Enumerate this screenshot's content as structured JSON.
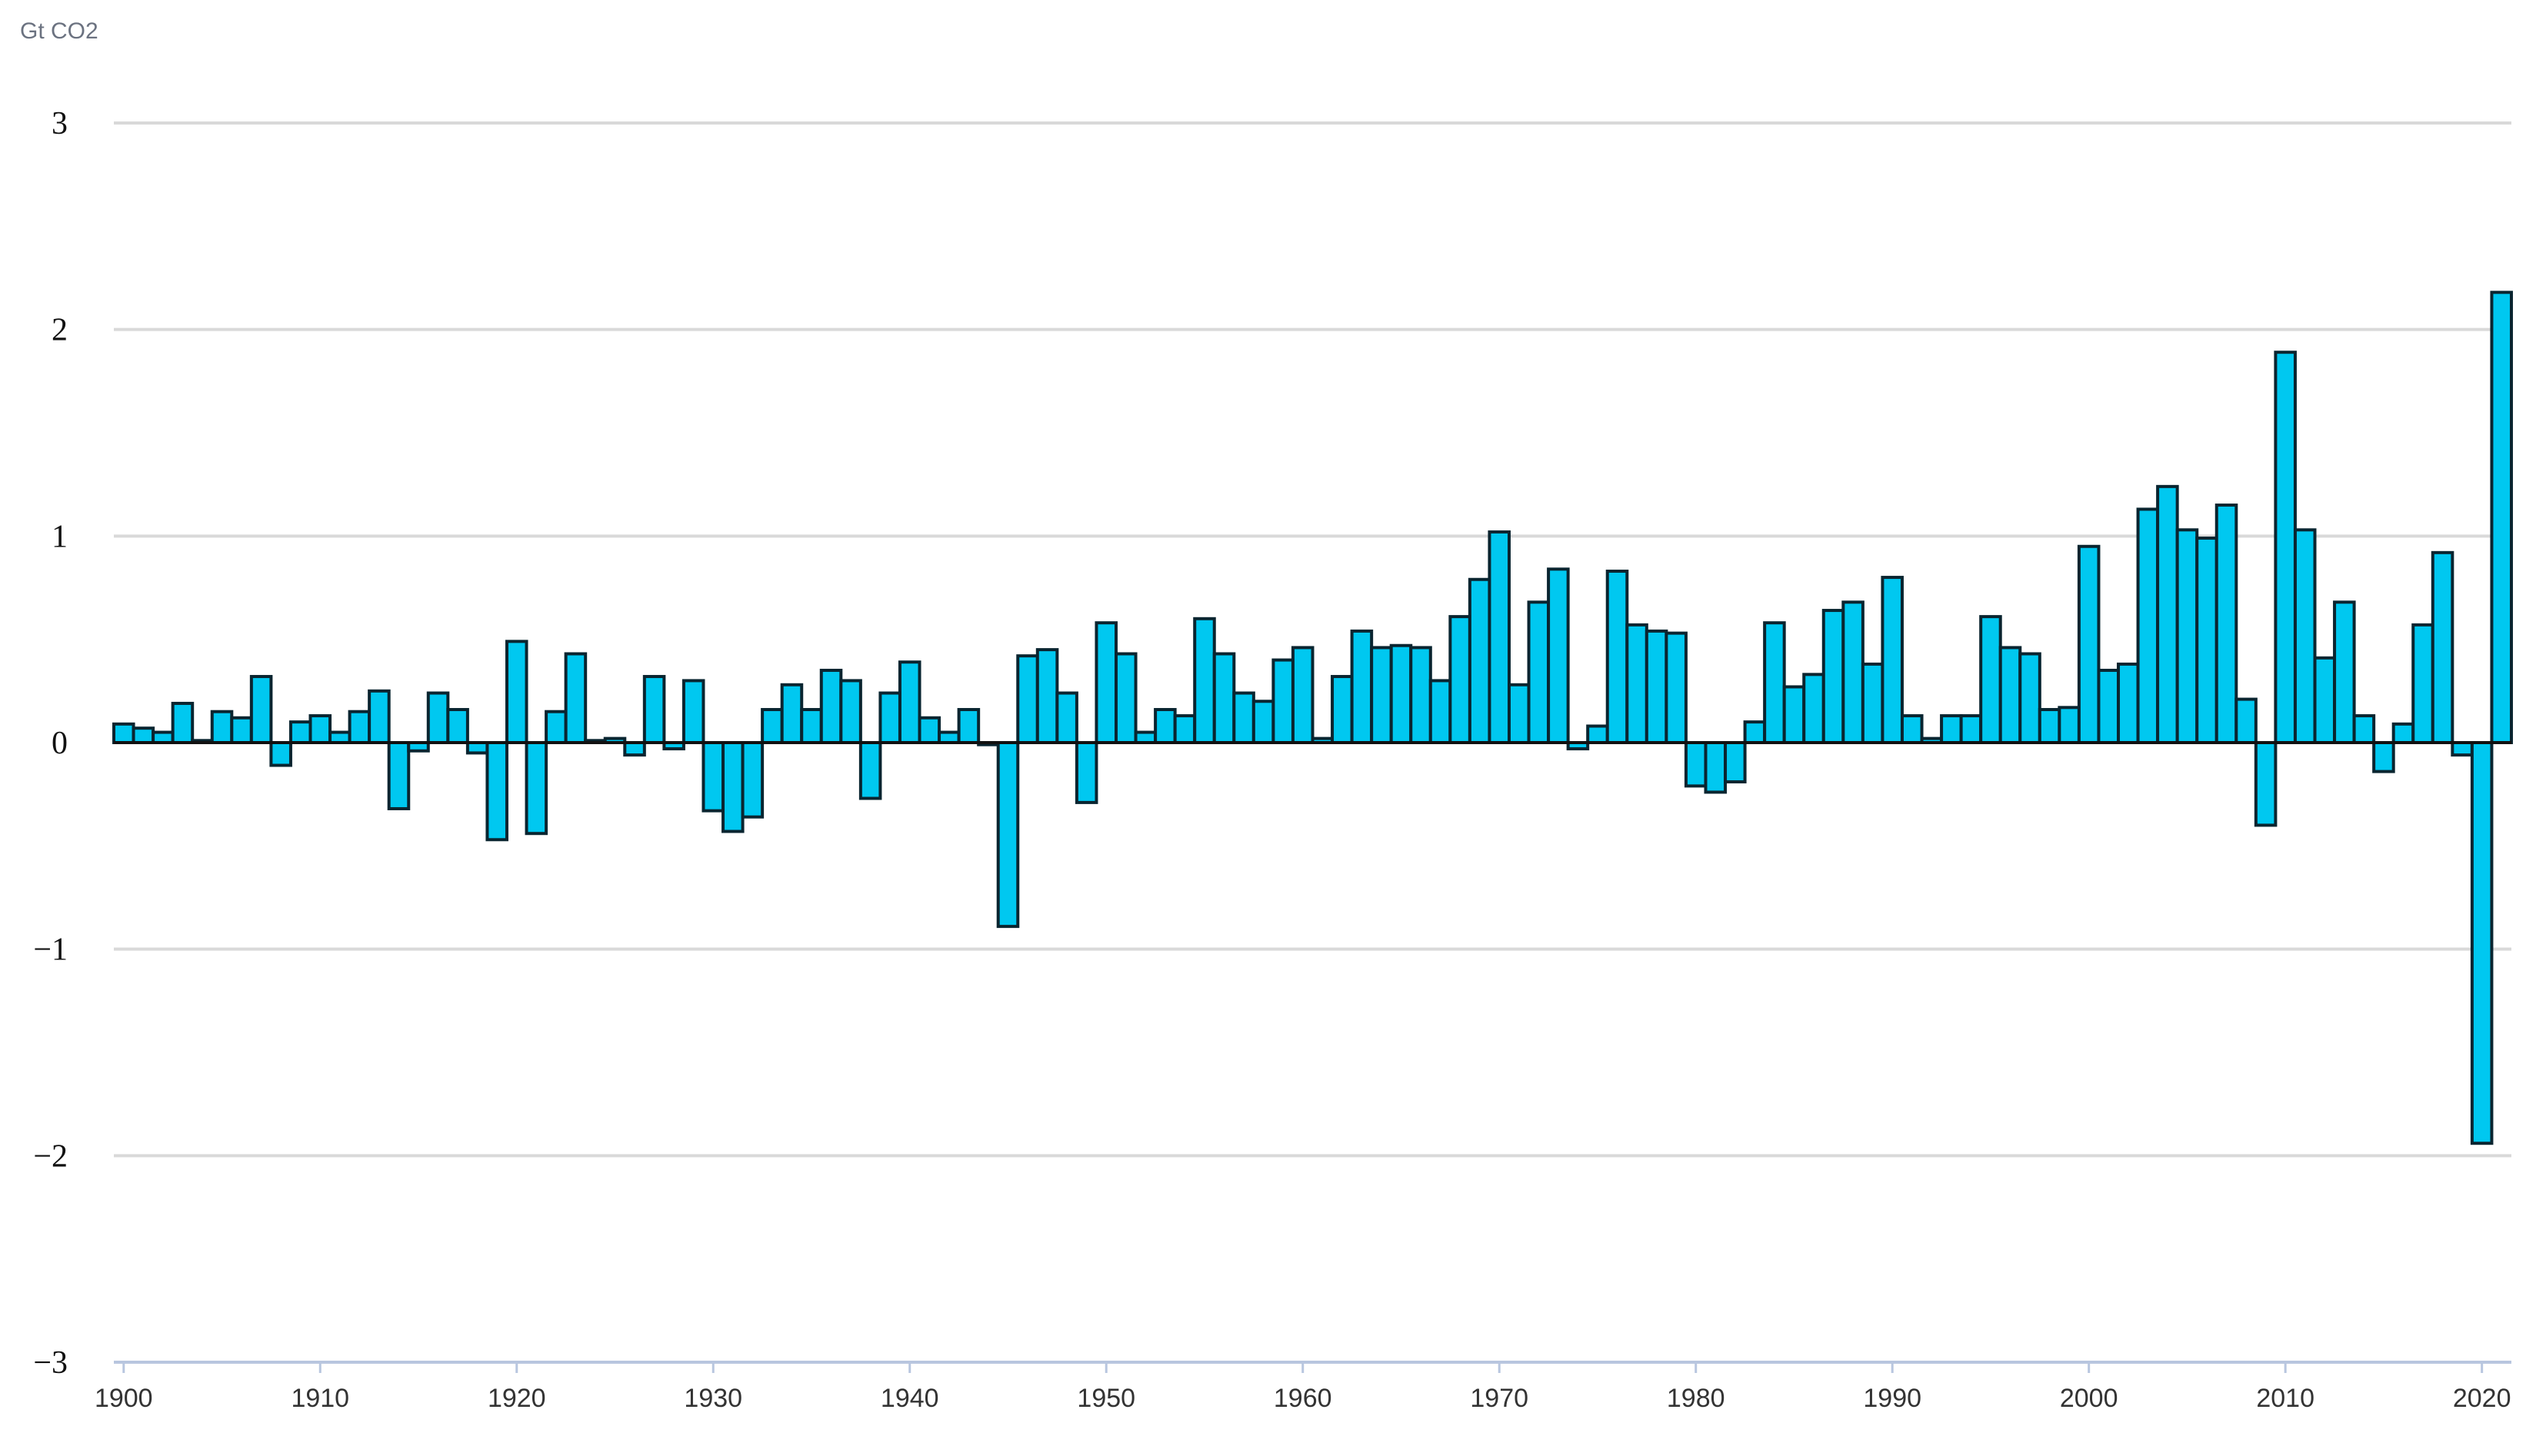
{
  "chart_data": {
    "type": "bar",
    "ylabel": "Gt CO2",
    "ylim": [
      -3,
      3
    ],
    "yticks": [
      "3",
      "2",
      "1",
      "0",
      "−1",
      "−2",
      "−3"
    ],
    "ytick_values": [
      3,
      2,
      1,
      0,
      -1,
      -2,
      -3
    ],
    "xticks": [
      "1900",
      "1910",
      "1920",
      "1930",
      "1940",
      "1950",
      "1960",
      "1970",
      "1980",
      "1990",
      "2000",
      "2010",
      "2020"
    ],
    "xtick_values": [
      1900,
      1910,
      1920,
      1930,
      1940,
      1950,
      1960,
      1970,
      1980,
      1990,
      2000,
      2010,
      2020
    ],
    "x_range": [
      1900,
      2021
    ],
    "grid": true,
    "colors": {
      "bar": "#00c8f0",
      "bar_edge": "#0a2530",
      "grid": "#d9d9d9",
      "axis": "#b8c6df"
    },
    "x": [
      1900,
      1901,
      1902,
      1903,
      1904,
      1905,
      1906,
      1907,
      1908,
      1909,
      1910,
      1911,
      1912,
      1913,
      1914,
      1915,
      1916,
      1917,
      1918,
      1919,
      1920,
      1921,
      1922,
      1923,
      1924,
      1925,
      1926,
      1927,
      1928,
      1929,
      1930,
      1931,
      1932,
      1933,
      1934,
      1935,
      1936,
      1937,
      1938,
      1939,
      1940,
      1941,
      1942,
      1943,
      1944,
      1945,
      1946,
      1947,
      1948,
      1949,
      1950,
      1951,
      1952,
      1953,
      1954,
      1955,
      1956,
      1957,
      1958,
      1959,
      1960,
      1961,
      1962,
      1963,
      1964,
      1965,
      1966,
      1967,
      1968,
      1969,
      1970,
      1971,
      1972,
      1973,
      1974,
      1975,
      1976,
      1977,
      1978,
      1979,
      1980,
      1981,
      1982,
      1983,
      1984,
      1985,
      1986,
      1987,
      1988,
      1989,
      1990,
      1991,
      1992,
      1993,
      1994,
      1995,
      1996,
      1997,
      1998,
      1999,
      2000,
      2001,
      2002,
      2003,
      2004,
      2005,
      2006,
      2007,
      2008,
      2009,
      2010,
      2011,
      2012,
      2013,
      2014,
      2015,
      2016,
      2017,
      2018,
      2019,
      2020,
      2021
    ],
    "values": [
      0.09,
      0.07,
      0.05,
      0.19,
      0.01,
      0.15,
      0.12,
      0.32,
      -0.11,
      0.1,
      0.13,
      0.05,
      0.15,
      0.25,
      -0.32,
      -0.04,
      0.24,
      0.16,
      -0.05,
      -0.47,
      0.49,
      -0.44,
      0.15,
      0.43,
      0.01,
      0.02,
      -0.06,
      0.32,
      -0.03,
      0.3,
      -0.33,
      -0.43,
      -0.36,
      0.16,
      0.28,
      0.16,
      0.35,
      0.3,
      -0.27,
      0.24,
      0.39,
      0.12,
      0.05,
      0.16,
      -0.01,
      -0.89,
      0.42,
      0.45,
      0.24,
      -0.29,
      0.58,
      0.43,
      0.05,
      0.16,
      0.13,
      0.6,
      0.43,
      0.24,
      0.2,
      0.4,
      0.46,
      0.02,
      0.32,
      0.54,
      0.46,
      0.47,
      0.46,
      0.3,
      0.61,
      0.79,
      1.02,
      0.28,
      0.68,
      0.84,
      -0.03,
      0.08,
      0.83,
      0.57,
      0.54,
      0.53,
      -0.21,
      -0.24,
      -0.19,
      0.1,
      0.58,
      0.27,
      0.33,
      0.64,
      0.68,
      0.38,
      0.8,
      0.13,
      0.02,
      0.13,
      0.13,
      0.61,
      0.46,
      0.43,
      0.16,
      0.17,
      0.95,
      0.35,
      0.38,
      1.13,
      1.24,
      1.03,
      0.99,
      1.15,
      0.21,
      -0.4,
      1.89,
      1.03,
      0.41,
      0.68,
      0.13,
      -0.14,
      0.09,
      0.57,
      0.92,
      -0.06,
      -1.94,
      2.18
    ]
  }
}
